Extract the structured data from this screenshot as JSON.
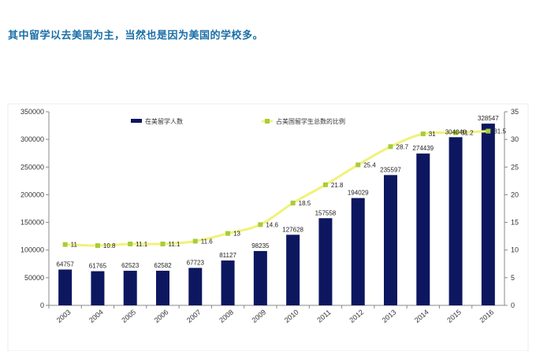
{
  "caption": "其中留学以去美国为主，当然也是因为美国的学校多。",
  "chart_data": {
    "type": "bar",
    "categories": [
      "2003",
      "2004",
      "2005",
      "2006",
      "2007",
      "2008",
      "2009",
      "2010",
      "2011",
      "2012",
      "2013",
      "2014",
      "2015",
      "2016"
    ],
    "series": [
      {
        "name": "在美留学人数",
        "type": "bar",
        "axis": "left",
        "color": "#0d1760",
        "values": [
          64757,
          61765,
          62523,
          62582,
          67723,
          81127,
          98235,
          127628,
          157558,
          194029,
          235597,
          274439,
          304040,
          328547
        ],
        "labels": [
          "64757",
          "61765",
          "62523",
          "62582",
          "67723",
          "81127",
          "98235",
          "127628",
          "157558",
          "194029",
          "235597",
          "274439",
          "304040",
          "328547"
        ]
      },
      {
        "name": "占美国留学生总数的比例",
        "type": "line",
        "axis": "right",
        "color": "#f0f27a",
        "marker_color": "#a8cc3a",
        "values": [
          11,
          10.8,
          11.1,
          11.1,
          11.6,
          13,
          14.6,
          18.5,
          21.8,
          25.4,
          28.7,
          31,
          31.2,
          31.5
        ],
        "labels": [
          "11",
          "10.8",
          "11.1",
          "11.1",
          "11.6",
          "13",
          "14.6",
          "18.5",
          "21.8",
          "25.4",
          "28.7",
          "31",
          "31.2",
          "31.5"
        ]
      }
    ],
    "y_left": {
      "range": [
        0,
        350000
      ],
      "ticks": [
        "0",
        "50000",
        "100000",
        "150000",
        "200000",
        "250000",
        "300000",
        "350000"
      ]
    },
    "y_right": {
      "range": [
        0,
        35
      ],
      "ticks": [
        "0",
        "5",
        "10",
        "15",
        "20",
        "25",
        "30",
        "35"
      ]
    },
    "grid": false,
    "legend_position": "top"
  }
}
